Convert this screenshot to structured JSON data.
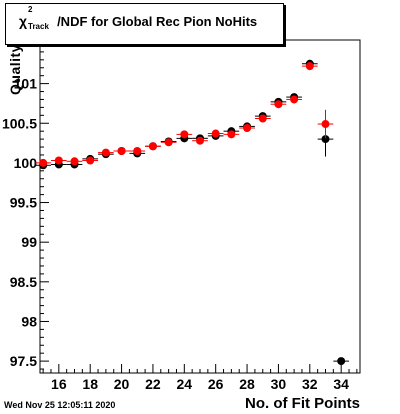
{
  "title": {
    "symbol": "χ",
    "superscript": "2",
    "subscript": "Track",
    "text": "/NDF for Global Rec Pion NoHits"
  },
  "timestamp": "Wed Nov 25 12:05:11 2020",
  "chart_data": {
    "type": "scatter",
    "xlabel": "No. of Fit Points",
    "ylabel": "Quality",
    "xlim": [
      14.8,
      35.2
    ],
    "ylim": [
      97.35,
      101.55
    ],
    "x_ticks": [
      16,
      18,
      20,
      22,
      24,
      26,
      28,
      30,
      32,
      34
    ],
    "y_ticks": [
      97.5,
      98,
      98.5,
      99,
      99.5,
      100,
      100.5,
      101
    ],
    "y_tick_labels": [
      "97.5",
      "98",
      "98.5",
      "99",
      "99.5",
      "100",
      "100.5",
      "101"
    ],
    "series": [
      {
        "color": "#000000",
        "points": [
          {
            "x": 15,
            "y": 99.97,
            "err": 0.03
          },
          {
            "x": 16,
            "y": 99.98,
            "err": 0.03
          },
          {
            "x": 17,
            "y": 99.98,
            "err": 0.03
          },
          {
            "x": 18,
            "y": 100.05,
            "err": 0.03
          },
          {
            "x": 19,
            "y": 100.11,
            "err": 0.03
          },
          {
            "x": 20,
            "y": 100.15,
            "err": 0.03
          },
          {
            "x": 21,
            "y": 100.12,
            "err": 0.03
          },
          {
            "x": 22,
            "y": 100.21,
            "err": 0.03
          },
          {
            "x": 23,
            "y": 100.27,
            "err": 0.03
          },
          {
            "x": 24,
            "y": 100.31,
            "err": 0.03
          },
          {
            "x": 25,
            "y": 100.31,
            "err": 0.03
          },
          {
            "x": 26,
            "y": 100.34,
            "err": 0.03
          },
          {
            "x": 27,
            "y": 100.4,
            "err": 0.03
          },
          {
            "x": 28,
            "y": 100.46,
            "err": 0.03
          },
          {
            "x": 29,
            "y": 100.59,
            "err": 0.03
          },
          {
            "x": 30,
            "y": 100.77,
            "err": 0.04
          },
          {
            "x": 31,
            "y": 100.83,
            "err": 0.04
          },
          {
            "x": 32,
            "y": 101.25,
            "err": 0.05
          },
          {
            "x": 33,
            "y": 100.3,
            "err": 0.22
          },
          {
            "x": 34,
            "y": 97.5,
            "err": 0.0
          }
        ]
      },
      {
        "color": "#ff0000",
        "points": [
          {
            "x": 15,
            "y": 100.0,
            "err": 0.03
          },
          {
            "x": 16,
            "y": 100.03,
            "err": 0.03
          },
          {
            "x": 17,
            "y": 100.02,
            "err": 0.03
          },
          {
            "x": 18,
            "y": 100.03,
            "err": 0.03
          },
          {
            "x": 19,
            "y": 100.13,
            "err": 0.03
          },
          {
            "x": 20,
            "y": 100.15,
            "err": 0.03
          },
          {
            "x": 21,
            "y": 100.15,
            "err": 0.03
          },
          {
            "x": 22,
            "y": 100.21,
            "err": 0.03
          },
          {
            "x": 23,
            "y": 100.26,
            "err": 0.03
          },
          {
            "x": 24,
            "y": 100.36,
            "err": 0.03
          },
          {
            "x": 25,
            "y": 100.28,
            "err": 0.03
          },
          {
            "x": 26,
            "y": 100.37,
            "err": 0.03
          },
          {
            "x": 27,
            "y": 100.36,
            "err": 0.03
          },
          {
            "x": 28,
            "y": 100.44,
            "err": 0.03
          },
          {
            "x": 29,
            "y": 100.56,
            "err": 0.03
          },
          {
            "x": 30,
            "y": 100.74,
            "err": 0.04
          },
          {
            "x": 31,
            "y": 100.8,
            "err": 0.04
          },
          {
            "x": 32,
            "y": 101.22,
            "err": 0.05
          },
          {
            "x": 33,
            "y": 100.49,
            "err": 0.18
          }
        ]
      }
    ],
    "grid": false,
    "legend": "none"
  }
}
